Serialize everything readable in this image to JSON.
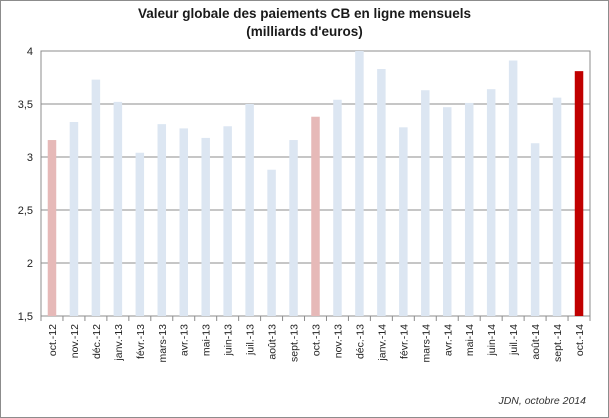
{
  "chart_data": {
    "type": "bar",
    "title": [
      "Valeur globale des paiements CB en ligne mensuels",
      "(milliards d'euros)"
    ],
    "categories": [
      "oct.-12",
      "nov.-12",
      "déc.-12",
      "janv.-13",
      "févr.-13",
      "mars-13",
      "avr.-13",
      "mai-13",
      "juin-13",
      "juil.-13",
      "août-13",
      "sept.-13",
      "oct.-13",
      "nov.-13",
      "déc.-13",
      "janv.-14",
      "févr.-14",
      "mars-14",
      "avr.-14",
      "mai-14",
      "juin-14",
      "juil.-14",
      "août-14",
      "sept.-14",
      "oct.-14"
    ],
    "values": [
      3.16,
      3.33,
      3.73,
      3.52,
      3.04,
      3.31,
      3.27,
      3.18,
      3.29,
      3.5,
      2.88,
      3.16,
      3.38,
      3.54,
      4.0,
      3.83,
      3.28,
      3.63,
      3.47,
      3.51,
      3.64,
      3.91,
      3.13,
      3.56,
      3.81
    ],
    "ylim": [
      1.5,
      4
    ],
    "yticks": [
      "1,5",
      "2",
      "2,5",
      "3",
      "3,5",
      "4"
    ],
    "ytick_values": [
      1.5,
      2,
      2.5,
      3,
      3.5,
      4
    ],
    "grid": true,
    "colors": {
      "default": "#dce6f2",
      "october_previous": "#e6b9b8",
      "latest": "#c00000",
      "grid": "#8c8c8c"
    },
    "highlight": {
      "oct.-12": "october_previous",
      "oct.-13": "october_previous",
      "oct.-14": "latest"
    }
  },
  "source": "JDN, octobre 2014"
}
